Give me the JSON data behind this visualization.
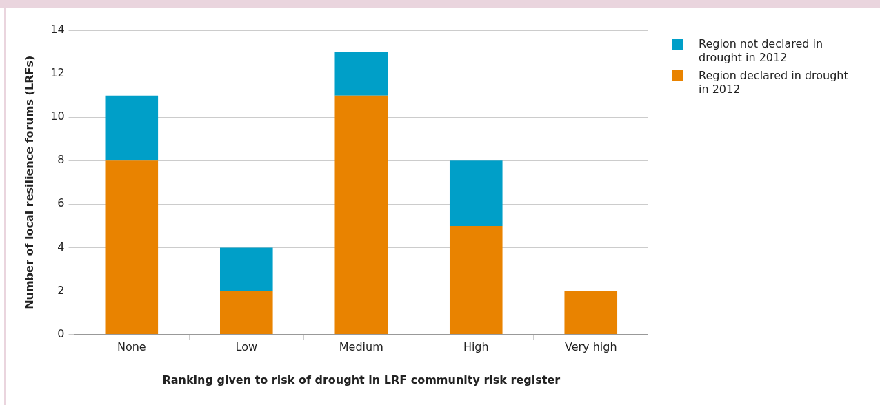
{
  "chart_data": {
    "type": "bar",
    "stacked": true,
    "xlabel": "Ranking given to risk of drought in LRF community risk register",
    "ylabel": "Number of local resilience forums (LRFs)",
    "categories": [
      "None",
      "Low",
      "Medium",
      "High",
      "Very high"
    ],
    "series": [
      {
        "name": "Region declared in drought in 2012",
        "color": "#e98300",
        "values": [
          8,
          2,
          11,
          5,
          2
        ]
      },
      {
        "name": "Region not declared in drought in 2012",
        "color": "#009fc8",
        "values": [
          3,
          2,
          2,
          3,
          0
        ]
      }
    ],
    "ylim": [
      0,
      14
    ],
    "yticks": [
      0,
      2,
      4,
      6,
      8,
      10,
      12,
      14
    ],
    "grid": "y",
    "legend": "top right"
  }
}
